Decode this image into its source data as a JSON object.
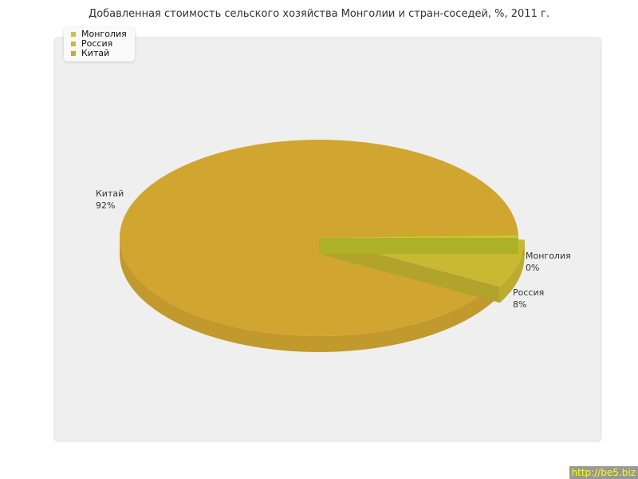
{
  "chart_data": {
    "type": "pie",
    "title": "Добавленная стоимость сельского хозяйства Монголии и стран-соседей, %, 2011 г.",
    "three_d": true,
    "legend_position": "top-left",
    "slices": [
      {
        "name": "Монголия",
        "value": 0,
        "label": "0%",
        "color": "#c5c92e"
      },
      {
        "name": "Россия",
        "value": 8,
        "label": "8%",
        "color": "#c9b932",
        "exploded": true
      },
      {
        "name": "Китай",
        "value": 92,
        "label": "92%",
        "color": "#d0a530"
      }
    ]
  },
  "watermark": "http://be5.biz"
}
